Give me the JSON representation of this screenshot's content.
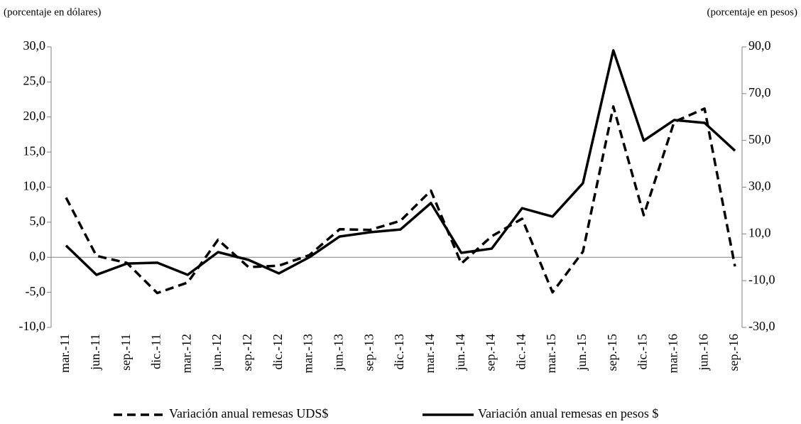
{
  "chart_data": {
    "type": "line",
    "y_label": "(porcentaje en dólares)",
    "y2_label": "(porcentaje en pesos)",
    "categories": [
      "mar.-11",
      "jun.-11",
      "sep.-11",
      "dic.-11",
      "mar.-12",
      "jun.-12",
      "sep.-12",
      "dic.-12",
      "mar.-13",
      "jun.-13",
      "sep.-13",
      "dic.-13",
      "mar.-14",
      "jun.-14",
      "sep.-14",
      "dic.-14",
      "mar.-15",
      "jun.-15",
      "sep.-15",
      "dic.-15",
      "mar.-16",
      "jun.-16",
      "sep.-16"
    ],
    "series": [
      {
        "name": "Variación anual remesas UDS$",
        "color": "#000000",
        "dash": true,
        "values": [
          8.5,
          0.2,
          -0.8,
          -5.1,
          -3.6,
          2.5,
          -1.4,
          -1.2,
          0.3,
          4.0,
          3.9,
          5.2,
          9.5,
          -0.9,
          3.0,
          5.5,
          -5.0,
          0.8,
          21.5,
          6.0,
          19.3,
          21.2,
          -1.3
        ]
      },
      {
        "name": "Variación anual remesas en pesos $",
        "color": "#000000",
        "dash": false,
        "axis": "y2",
        "values": [
          5.0,
          -7.5,
          -2.7,
          -2.3,
          -7.5,
          2.2,
          -1.1,
          -6.9,
          0.0,
          8.9,
          10.7,
          11.9,
          23.2,
          1.9,
          3.7,
          21.0,
          17.4,
          31.7,
          88.5,
          49.9,
          58.7,
          57.5,
          45.6
        ]
      }
    ],
    "ylim": [
      -10,
      30
    ],
    "yticks": [
      {
        "value": -10,
        "label": "-10,0"
      },
      {
        "value": -5,
        "label": "-5,0"
      },
      {
        "value": 0,
        "label": "0,0"
      },
      {
        "value": 5,
        "label": "5,0"
      },
      {
        "value": 10,
        "label": "10,0"
      },
      {
        "value": 15,
        "label": "15,0"
      },
      {
        "value": 20,
        "label": "20,0"
      },
      {
        "value": 25,
        "label": "25,0"
      },
      {
        "value": 30,
        "label": "30,0"
      }
    ],
    "y2lim": [
      -30,
      90
    ],
    "y2ticks": [
      {
        "value": -30,
        "label": "-30,0"
      },
      {
        "value": -10,
        "label": "-10,0"
      },
      {
        "value": 10,
        "label": "10,0"
      },
      {
        "value": 30,
        "label": "30,0"
      },
      {
        "value": 50,
        "label": "50,0"
      },
      {
        "value": 70,
        "label": "70,0"
      },
      {
        "value": 90,
        "label": "90,0"
      }
    ],
    "grid": false,
    "legend": "bottom"
  }
}
